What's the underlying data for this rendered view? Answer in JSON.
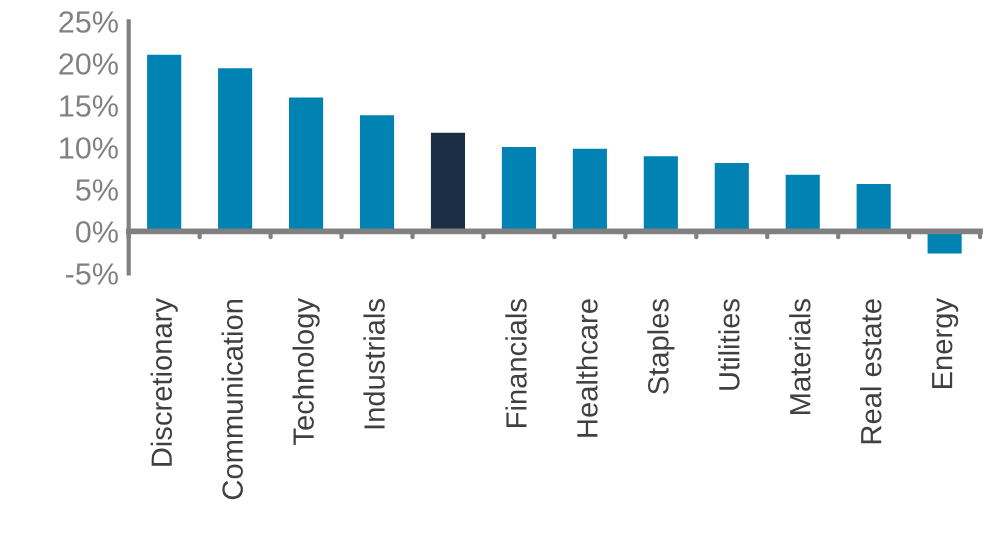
{
  "chart_data": {
    "type": "bar",
    "categories": [
      "Discretionary",
      "Communication",
      "Technology",
      "Industrials",
      null,
      "Financials",
      "Healthcare",
      "Staples",
      "Utilities",
      "Materials",
      "Real estate",
      "Energy"
    ],
    "values": [
      21.2,
      19.6,
      16.1,
      14.0,
      11.9,
      10.2,
      10.0,
      9.1,
      8.3,
      6.9,
      5.8,
      -2.8
    ],
    "colors": [
      "#0083b3",
      "#0083b3",
      "#0083b3",
      "#0083b3",
      "#1a2e44",
      "#0083b3",
      "#0083b3",
      "#0083b3",
      "#0083b3",
      "#0083b3",
      "#0083b3",
      "#0083b3"
    ],
    "ylim": [
      -5,
      25
    ],
    "yticks": [
      {
        "value": -5,
        "label": "-5%"
      },
      {
        "value": 0,
        "label": "0%"
      },
      {
        "value": 5,
        "label": "5%"
      },
      {
        "value": 10,
        "label": "10%"
      },
      {
        "value": 15,
        "label": "15%"
      },
      {
        "value": 20,
        "label": "20%"
      },
      {
        "value": 25,
        "label": "25%"
      }
    ],
    "grid": false,
    "legend": false
  }
}
